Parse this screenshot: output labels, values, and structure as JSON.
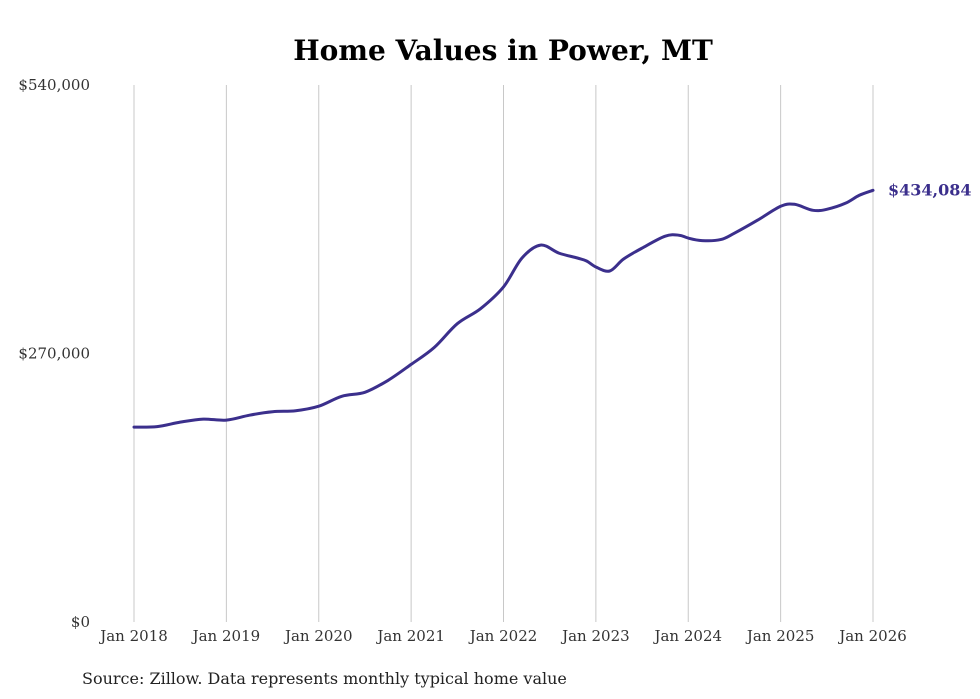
{
  "chart_data": {
    "type": "line",
    "title": "Home Values in Power, MT",
    "source": "Source: Zillow. Data represents monthly typical home value",
    "ylim": [
      0,
      540000
    ],
    "yticks": [
      {
        "value": 0,
        "label": "$0"
      },
      {
        "value": 270000,
        "label": "$270,000"
      },
      {
        "value": 540000,
        "label": "$540,000"
      }
    ],
    "xlim": [
      2018.0,
      2026.0
    ],
    "xticks": [
      {
        "value": 2018,
        "label": "Jan 2018"
      },
      {
        "value": 2019,
        "label": "Jan 2019"
      },
      {
        "value": 2020,
        "label": "Jan 2020"
      },
      {
        "value": 2021,
        "label": "Jan 2021"
      },
      {
        "value": 2022,
        "label": "Jan 2022"
      },
      {
        "value": 2023,
        "label": "Jan 2023"
      },
      {
        "value": 2024,
        "label": "Jan 2024"
      },
      {
        "value": 2025,
        "label": "Jan 2025"
      },
      {
        "value": 2026,
        "label": "Jan 2026"
      }
    ],
    "grid": {
      "vertical": true,
      "horizontal": false
    },
    "colors": {
      "line": "#3b2f8c",
      "end_label": "#3b2f8c"
    },
    "end_label": "$434,084",
    "series": [
      {
        "points": [
          [
            2018.0,
            196000
          ],
          [
            2018.25,
            196500
          ],
          [
            2018.5,
            201000
          ],
          [
            2018.75,
            204000
          ],
          [
            2019.0,
            203000
          ],
          [
            2019.25,
            208000
          ],
          [
            2019.5,
            211500
          ],
          [
            2019.75,
            212500
          ],
          [
            2020.0,
            217000
          ],
          [
            2020.25,
            227000
          ],
          [
            2020.5,
            231000
          ],
          [
            2020.75,
            243000
          ],
          [
            2021.0,
            259000
          ],
          [
            2021.25,
            276000
          ],
          [
            2021.5,
            300000
          ],
          [
            2021.75,
            315000
          ],
          [
            2022.0,
            337000
          ],
          [
            2022.2,
            366000
          ],
          [
            2022.4,
            379000
          ],
          [
            2022.6,
            371000
          ],
          [
            2022.8,
            366000
          ],
          [
            2022.9,
            363000
          ],
          [
            2023.0,
            357000
          ],
          [
            2023.15,
            353000
          ],
          [
            2023.3,
            365000
          ],
          [
            2023.5,
            376000
          ],
          [
            2023.75,
            388000
          ],
          [
            2023.9,
            389000
          ],
          [
            2024.0,
            386000
          ],
          [
            2024.15,
            383500
          ],
          [
            2024.35,
            384500
          ],
          [
            2024.5,
            391000
          ],
          [
            2024.75,
            404000
          ],
          [
            2025.0,
            418000
          ],
          [
            2025.15,
            420000
          ],
          [
            2025.35,
            414000
          ],
          [
            2025.5,
            415000
          ],
          [
            2025.7,
            421000
          ],
          [
            2025.85,
            429000
          ],
          [
            2026.0,
            434084
          ]
        ]
      }
    ]
  }
}
